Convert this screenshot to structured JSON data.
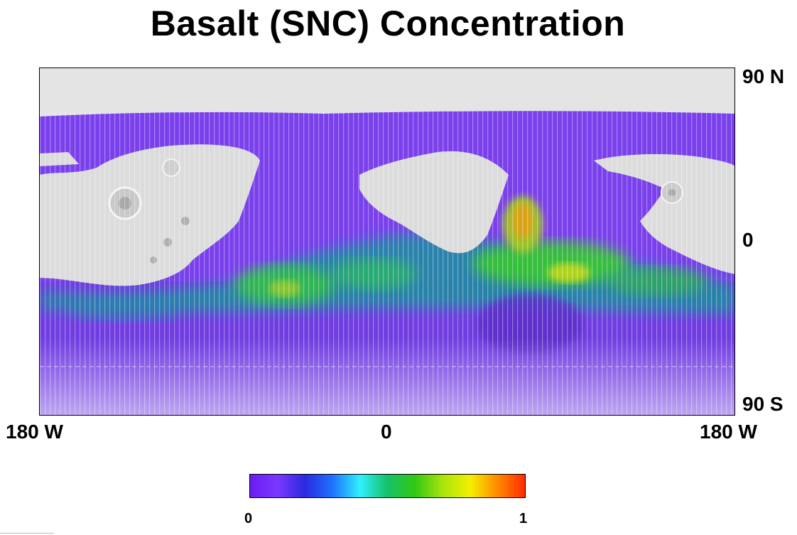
{
  "title": "Basalt (SNC) Concentration",
  "latitude_labels": {
    "north": "90 N",
    "equator": "0",
    "south": "90 S"
  },
  "longitude_labels": {
    "left": "180 W",
    "center": "0",
    "right": "180 W"
  },
  "colorbar": {
    "min_label": "0",
    "max_label": "1",
    "colors": [
      "#6a1cf0",
      "#7a38ff",
      "#2a2ae0",
      "#1e72ff",
      "#2ff0ff",
      "#15c16a",
      "#32c814",
      "#a8e40c",
      "#f4f000",
      "#ff8a00",
      "#ff2a00"
    ]
  },
  "map": {
    "background_color": "#e4e4e4",
    "low_value_color": "#7a3ef0",
    "high_value_color": "#f08020"
  }
}
